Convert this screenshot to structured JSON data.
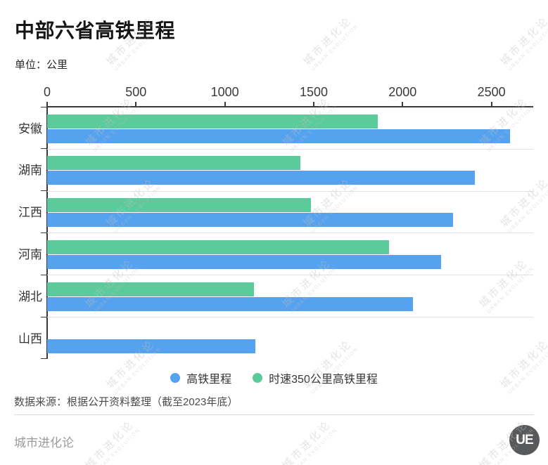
{
  "title": "中部六省高铁里程",
  "unit_label": "单位：公里",
  "watermark": {
    "line1": "城市进化论",
    "line2": "URBAN EVOLUTION"
  },
  "chart_data": {
    "type": "bar",
    "orientation": "horizontal",
    "title": "中部六省高铁里程",
    "unit": "公里",
    "categories": [
      "安徽",
      "湖南",
      "江西",
      "河南",
      "湖北",
      "山西"
    ],
    "series": [
      {
        "name": "高铁里程",
        "color": "#55A3EF",
        "values": [
          2606,
          2405,
          2285,
          2215,
          2060,
          1170
        ]
      },
      {
        "name": "时速350公里高铁里程",
        "color": "#5CCB9C",
        "values": [
          1860,
          1425,
          1485,
          1925,
          1165,
          null
        ]
      }
    ],
    "x_ticks": [
      0,
      500,
      1000,
      1500,
      2000,
      2500
    ],
    "xlim": [
      0,
      2735
    ],
    "grid": false,
    "legend_position": "bottom"
  },
  "legend": [
    {
      "label": "高铁里程",
      "color": "#55A3EF"
    },
    {
      "label": "时速350公里高铁里程",
      "color": "#5CCB9C"
    }
  ],
  "source_note": "数据来源：根据公开资料整理（截至2023年底）",
  "footer": {
    "brand": "城市进化论",
    "logo_text": "UE"
  },
  "colors": {
    "hsr_bar": "#55A3EF",
    "hsr350_bar": "#5CCB9C",
    "axis": "#3a3a3a",
    "divider": "#e4e4e4",
    "watermark": "#bfbfbf"
  }
}
